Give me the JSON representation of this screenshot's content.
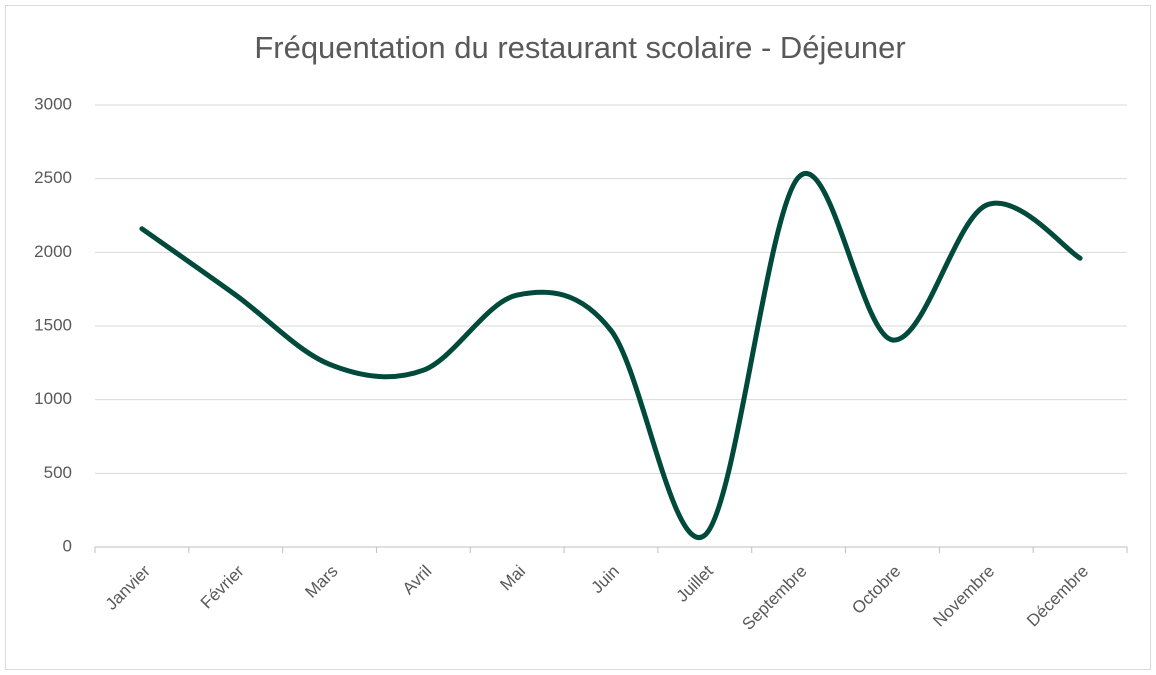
{
  "chart_data": {
    "type": "line",
    "smooth": true,
    "title": "Fréquentation du restaurant scolaire - Déjeuner",
    "categories": [
      "Janvier",
      "Février",
      "Mars",
      "Avril",
      "Mai",
      "Juin",
      "Juillet",
      "Septembre",
      "Octobre",
      "Novembre",
      "Décembre"
    ],
    "series": [
      {
        "color": "#004a3c",
        "values": [
          2160,
          1710,
          1240,
          1200,
          1710,
          1470,
          80,
          2510,
          1405,
          2320,
          1960
        ]
      }
    ],
    "ylim": [
      0,
      3000
    ],
    "yticks": [
      0,
      500,
      1000,
      1500,
      2000,
      2500,
      3000
    ],
    "grid": true
  }
}
